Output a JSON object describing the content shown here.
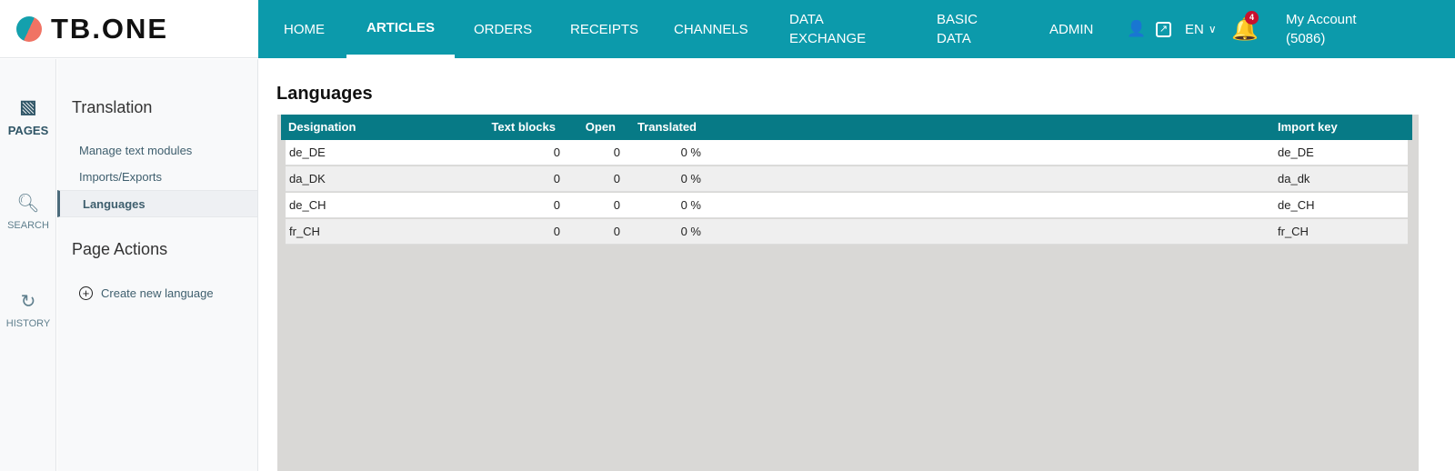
{
  "brand": {
    "name": "TB.ONE"
  },
  "nav": {
    "items": [
      "HOME",
      "ARTICLES",
      "ORDERS",
      "RECEIPTS",
      "CHANNELS"
    ],
    "data_exchange": [
      "DATA",
      "EXCHANGE"
    ],
    "basic_data": [
      "BASIC",
      "DATA"
    ],
    "admin": "ADMIN",
    "language": "EN",
    "notifications": "4",
    "account": [
      "My Account",
      "(5086)"
    ],
    "active": "ARTICLES",
    "accent": "#0c9aab"
  },
  "rail": {
    "pages": "PAGES",
    "search": "SEARCH",
    "history": "HISTORY"
  },
  "sidebar": {
    "section": "Translation",
    "links": [
      "Manage text modules",
      "Imports/Exports",
      "Languages"
    ],
    "actions_title": "Page Actions",
    "create": "Create new language"
  },
  "main": {
    "title": "Languages",
    "columns": {
      "designation": "Designation",
      "text_blocks": "Text blocks",
      "open": "Open",
      "translated": "Translated",
      "import_key": "Import key"
    },
    "rows": [
      {
        "designation": "de_DE",
        "text_blocks": "0",
        "open": "0",
        "translated": "0 %",
        "import_key": "de_DE"
      },
      {
        "designation": "da_DK",
        "text_blocks": "0",
        "open": "0",
        "translated": "0 %",
        "import_key": "da_dk"
      },
      {
        "designation": "de_CH",
        "text_blocks": "0",
        "open": "0",
        "translated": "0 %",
        "import_key": "de_CH"
      },
      {
        "designation": "fr_CH",
        "text_blocks": "0",
        "open": "0",
        "translated": "0 %",
        "import_key": "fr_CH"
      }
    ]
  }
}
